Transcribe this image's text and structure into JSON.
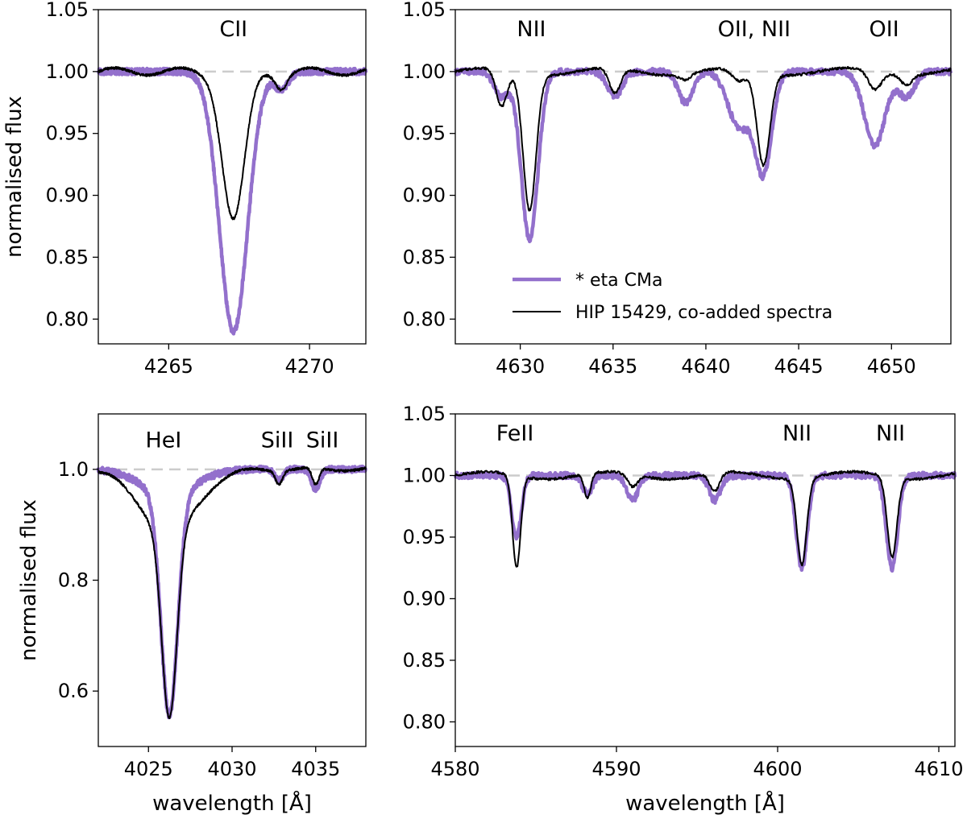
{
  "chart_data": [
    {
      "id": "cii",
      "type": "line",
      "xlim": [
        4262.5,
        4272
      ],
      "ylim": [
        0.78,
        1.05
      ],
      "xticks": [
        4265,
        4270
      ],
      "yticks": [
        0.8,
        0.85,
        0.9,
        0.95,
        1.0,
        1.05
      ],
      "ytick_labels": [
        "0.80",
        "0.85",
        "0.90",
        "0.95",
        "1.00",
        "1.05"
      ],
      "ylabel": "normalised flux",
      "xlabel": "",
      "reference_line": 1.0,
      "annotations": [
        {
          "text": "CII",
          "x": 4267.3,
          "y": 1.035
        }
      ],
      "lines": [
        {
          "center": 4267.3,
          "eta_depth": 0.21,
          "eta_width": 0.5,
          "hip_depth": 0.12,
          "hip_width": 0.4
        },
        {
          "center": 4269.0,
          "eta_depth": 0.014,
          "eta_width": 0.25,
          "hip_depth": 0.012,
          "hip_width": 0.2
        }
      ]
    },
    {
      "id": "nii_oii",
      "type": "line",
      "xlim": [
        4626.5,
        4653.2
      ],
      "ylim": [
        0.78,
        1.05
      ],
      "xticks": [
        4630,
        4635,
        4640,
        4645,
        4650
      ],
      "yticks": [
        0.8,
        0.85,
        0.9,
        0.95,
        1.0,
        1.05
      ],
      "ytick_labels": [
        "0.80",
        "0.85",
        "0.90",
        "0.95",
        "1.00",
        "1.05"
      ],
      "ylabel": "",
      "xlabel": "",
      "reference_line": 1.0,
      "annotations": [
        {
          "text": "NII",
          "x": 4630.6,
          "y": 1.035
        },
        {
          "text": "OII, NII",
          "x": 4642.6,
          "y": 1.035
        },
        {
          "text": "OII",
          "x": 4649.6,
          "y": 1.035
        }
      ],
      "lines": [
        {
          "center": 4630.5,
          "eta_depth": 0.135,
          "eta_width": 0.45,
          "hip_depth": 0.11,
          "hip_width": 0.35
        },
        {
          "center": 4629.0,
          "eta_depth": 0.02,
          "eta_width": 0.4,
          "hip_depth": 0.03,
          "hip_width": 0.3
        },
        {
          "center": 4635.1,
          "eta_depth": 0.02,
          "eta_width": 0.4,
          "hip_depth": 0.02,
          "hip_width": 0.3
        },
        {
          "center": 4638.9,
          "eta_depth": 0.025,
          "eta_width": 0.4,
          "hip_depth": 0.005,
          "hip_width": 0.3
        },
        {
          "center": 4641.8,
          "eta_depth": 0.045,
          "eta_width": 0.6,
          "hip_depth": 0.01,
          "hip_width": 0.4
        },
        {
          "center": 4643.1,
          "eta_depth": 0.08,
          "eta_width": 0.45,
          "hip_depth": 0.075,
          "hip_width": 0.35
        },
        {
          "center": 4649.1,
          "eta_depth": 0.06,
          "eta_width": 0.55,
          "hip_depth": 0.015,
          "hip_width": 0.35
        },
        {
          "center": 4650.8,
          "eta_depth": 0.02,
          "eta_width": 0.45,
          "hip_depth": 0.008,
          "hip_width": 0.3
        }
      ],
      "legend": {
        "placement": "lower-right",
        "entries": [
          {
            "series": "eta",
            "label": "* eta CMa"
          },
          {
            "series": "hip",
            "label": "HIP 15429, co-added spectra"
          }
        ]
      }
    },
    {
      "id": "hei",
      "type": "line",
      "xlim": [
        4022,
        4038
      ],
      "ylim": [
        0.5,
        1.1
      ],
      "xticks": [
        4025,
        4030,
        4035
      ],
      "yticks": [
        0.6,
        0.8,
        1.0
      ],
      "ytick_labels": [
        "0.6",
        "0.8",
        "1.0"
      ],
      "ylabel": "normalised flux",
      "xlabel": "wavelength [Å]",
      "reference_line": 1.0,
      "annotations": [
        {
          "text": "HeI",
          "x": 4025.9,
          "y": 1.054
        },
        {
          "text": "SiII",
          "x": 4032.7,
          "y": 1.054
        },
        {
          "text": "SiII",
          "x": 4035.4,
          "y": 1.054
        }
      ],
      "lines": [
        {
          "center": 4026.25,
          "eta_depth": 0.4,
          "eta_width": 0.5,
          "hip_depth": 0.34,
          "hip_width": 0.45
        },
        {
          "center": 4026.2,
          "eta_depth": 0.045,
          "eta_width": 1.6,
          "hip_depth": 0.11,
          "hip_width": 1.7
        },
        {
          "center": 4032.8,
          "eta_depth": 0.02,
          "eta_width": 0.25,
          "hip_depth": 0.025,
          "hip_width": 0.2
        },
        {
          "center": 4035.0,
          "eta_depth": 0.035,
          "eta_width": 0.25,
          "hip_depth": 0.03,
          "hip_width": 0.2
        }
      ]
    },
    {
      "id": "feii_nii",
      "type": "line",
      "xlim": [
        4580,
        4611
      ],
      "ylim": [
        0.78,
        1.05
      ],
      "xticks": [
        4580,
        4590,
        4600,
        4610
      ],
      "yticks": [
        0.8,
        0.85,
        0.9,
        0.95,
        1.0,
        1.05
      ],
      "ytick_labels": [
        "0.80",
        "0.85",
        "0.90",
        "0.95",
        "1.00",
        "1.05"
      ],
      "ylabel": "",
      "xlabel": "wavelength [Å]",
      "reference_line": 1.0,
      "annotations": [
        {
          "text": "FeII",
          "x": 4583.7,
          "y": 1.035
        },
        {
          "text": "NII",
          "x": 4601.2,
          "y": 1.035
        },
        {
          "text": "NII",
          "x": 4607.0,
          "y": 1.035
        }
      ],
      "lines": [
        {
          "center": 4583.8,
          "eta_depth": 0.05,
          "eta_width": 0.3,
          "hip_depth": 0.075,
          "hip_width": 0.25
        },
        {
          "center": 4588.2,
          "eta_depth": 0.015,
          "eta_width": 0.3,
          "hip_depth": 0.02,
          "hip_width": 0.2
        },
        {
          "center": 4591.0,
          "eta_depth": 0.02,
          "eta_width": 0.35,
          "hip_depth": 0.01,
          "hip_width": 0.3
        },
        {
          "center": 4596.1,
          "eta_depth": 0.02,
          "eta_width": 0.35,
          "hip_depth": 0.015,
          "hip_width": 0.3
        },
        {
          "center": 4601.5,
          "eta_depth": 0.075,
          "eta_width": 0.35,
          "hip_depth": 0.07,
          "hip_width": 0.3
        },
        {
          "center": 4607.1,
          "eta_depth": 0.075,
          "eta_width": 0.35,
          "hip_depth": 0.065,
          "hip_width": 0.3
        }
      ]
    }
  ],
  "series_style": {
    "eta": {
      "color": "#9370cc"
    },
    "hip": {
      "color": "#000000"
    }
  }
}
